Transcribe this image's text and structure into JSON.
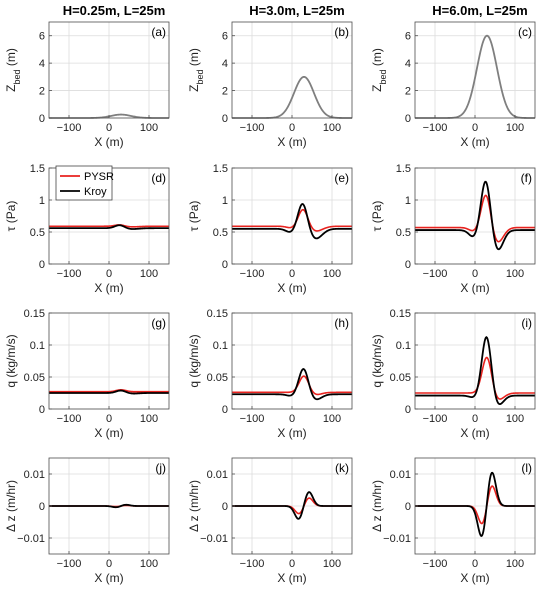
{
  "column_titles": [
    "H=0.25m, L=25m",
    "H=3.0m, L=25m",
    "H=6.0m, L=25m"
  ],
  "legend": {
    "items": [
      {
        "label": "PYSR",
        "color": "#e8231f"
      },
      {
        "label": "Kroy",
        "color": "#000000"
      }
    ],
    "placement": "top-left of panel (d)"
  },
  "chart_data": [
    {
      "type": "line",
      "panel": "(a)",
      "xlabel": "X (m)",
      "ylabel": "Z_bed (m)",
      "xlim": [
        -150,
        150
      ],
      "ylim": [
        0,
        7
      ],
      "yticks": [
        "0",
        "2",
        "4",
        "6"
      ],
      "xticks": [
        "-100",
        "0",
        "100"
      ],
      "grid": true,
      "series": [
        {
          "color": "#7f7f7f",
          "gauss": {
            "amp": 0.25,
            "center": 30,
            "sigma": 25
          }
        }
      ]
    },
    {
      "type": "line",
      "panel": "(b)",
      "xlabel": "X (m)",
      "ylabel": "Z_bed (m)",
      "xlim": [
        -150,
        150
      ],
      "ylim": [
        0,
        7
      ],
      "yticks": [
        "0",
        "2",
        "4",
        "6"
      ],
      "xticks": [
        "-100",
        "0",
        "100"
      ],
      "grid": true,
      "series": [
        {
          "color": "#7f7f7f",
          "gauss": {
            "amp": 3.0,
            "center": 30,
            "sigma": 25
          }
        }
      ]
    },
    {
      "type": "line",
      "panel": "(c)",
      "xlabel": "X (m)",
      "ylabel": "Z_bed (m)",
      "xlim": [
        -150,
        150
      ],
      "ylim": [
        0,
        7
      ],
      "yticks": [
        "0",
        "2",
        "4",
        "6"
      ],
      "xticks": [
        "-100",
        "0",
        "100"
      ],
      "grid": true,
      "series": [
        {
          "color": "#7f7f7f",
          "gauss": {
            "amp": 6.0,
            "center": 30,
            "sigma": 25
          }
        }
      ]
    },
    {
      "type": "line",
      "panel": "(d)",
      "xlabel": "X (m)",
      "ylabel": "τ (Pa)",
      "xlim": [
        -150,
        150
      ],
      "ylim": [
        0,
        1.5
      ],
      "yticks": [
        "0",
        "0.5",
        "1",
        "1.5"
      ],
      "xticks": [
        "-100",
        "0",
        "100"
      ],
      "grid": true,
      "series": [
        {
          "name": "PYSR",
          "color": "#e8231f",
          "base": 0.59,
          "terms": [
            {
              "amp": 0.025,
              "center": 27,
              "sigma": 12
            },
            {
              "amp": -0.01,
              "center": 55,
              "sigma": 20
            }
          ]
        },
        {
          "name": "Kroy",
          "color": "#000000",
          "base": 0.56,
          "terms": [
            {
              "amp": 0.05,
              "center": 27,
              "sigma": 12
            },
            {
              "amp": -0.015,
              "center": 55,
              "sigma": 18
            }
          ]
        }
      ]
    },
    {
      "type": "line",
      "panel": "(e)",
      "xlabel": "X (m)",
      "ylabel": "τ (Pa)",
      "xlim": [
        -150,
        150
      ],
      "ylim": [
        0,
        1.5
      ],
      "yticks": [
        "0",
        "0.5",
        "1",
        "1.5"
      ],
      "xticks": [
        "-100",
        "0",
        "100"
      ],
      "grid": true,
      "series": [
        {
          "name": "PYSR",
          "color": "#e8231f",
          "base": 0.59,
          "terms": [
            {
              "amp": 0.28,
              "center": 28,
              "sigma": 12
            },
            {
              "amp": -0.08,
              "center": 58,
              "sigma": 18
            },
            {
              "amp": -0.03,
              "center": 0,
              "sigma": 12
            }
          ]
        },
        {
          "name": "Kroy",
          "color": "#000000",
          "base": 0.55,
          "terms": [
            {
              "amp": 0.42,
              "center": 27,
              "sigma": 12
            },
            {
              "amp": -0.16,
              "center": 58,
              "sigma": 17
            },
            {
              "amp": -0.06,
              "center": -2,
              "sigma": 12
            }
          ]
        }
      ]
    },
    {
      "type": "line",
      "panel": "(f)",
      "xlabel": "X (m)",
      "ylabel": "τ (Pa)",
      "xlim": [
        -150,
        150
      ],
      "ylim": [
        0,
        1.5
      ],
      "yticks": [
        "0",
        "0.5",
        "1",
        "1.5"
      ],
      "xticks": [
        "-100",
        "0",
        "100"
      ],
      "grid": true,
      "series": [
        {
          "name": "PYSR",
          "color": "#e8231f",
          "base": 0.57,
          "terms": [
            {
              "amp": 0.55,
              "center": 28,
              "sigma": 12
            },
            {
              "amp": -0.25,
              "center": 55,
              "sigma": 15
            },
            {
              "amp": -0.06,
              "center": -2,
              "sigma": 12
            }
          ]
        },
        {
          "name": "Kroy",
          "color": "#000000",
          "base": 0.53,
          "terms": [
            {
              "amp": 0.8,
              "center": 27,
              "sigma": 12
            },
            {
              "amp": -0.33,
              "center": 56,
              "sigma": 14
            },
            {
              "amp": -0.12,
              "center": -2,
              "sigma": 12
            }
          ]
        }
      ]
    },
    {
      "type": "line",
      "panel": "(g)",
      "xlabel": "X (m)",
      "ylabel": "q (kg/m/s)",
      "xlim": [
        -150,
        150
      ],
      "ylim": [
        0,
        0.15
      ],
      "yticks": [
        "0",
        "0.05",
        "0.1",
        "0.15"
      ],
      "xticks": [
        "-100",
        "0",
        "100"
      ],
      "grid": true,
      "series": [
        {
          "name": "PYSR",
          "color": "#e8231f",
          "base": 0.027,
          "terms": [
            {
              "amp": 0.003,
              "center": 30,
              "sigma": 12
            }
          ]
        },
        {
          "name": "Kroy",
          "color": "#000000",
          "base": 0.025,
          "terms": [
            {
              "amp": 0.004,
              "center": 30,
              "sigma": 12
            },
            {
              "amp": -0.001,
              "center": 58,
              "sigma": 15
            }
          ]
        }
      ]
    },
    {
      "type": "line",
      "panel": "(h)",
      "xlabel": "X (m)",
      "ylabel": "q (kg/m/s)",
      "xlim": [
        -150,
        150
      ],
      "ylim": [
        0,
        0.15
      ],
      "yticks": [
        "0",
        "0.05",
        "0.1",
        "0.15"
      ],
      "xticks": [
        "-100",
        "0",
        "100"
      ],
      "grid": true,
      "series": [
        {
          "name": "PYSR",
          "color": "#e8231f",
          "base": 0.026,
          "terms": [
            {
              "amp": 0.026,
              "center": 30,
              "sigma": 12
            },
            {
              "amp": -0.004,
              "center": 58,
              "sigma": 15
            }
          ]
        },
        {
          "name": "Kroy",
          "color": "#000000",
          "base": 0.023,
          "terms": [
            {
              "amp": 0.041,
              "center": 29,
              "sigma": 12
            },
            {
              "amp": -0.009,
              "center": 58,
              "sigma": 15
            },
            {
              "amp": -0.003,
              "center": 0,
              "sigma": 12
            }
          ]
        }
      ]
    },
    {
      "type": "line",
      "panel": "(i)",
      "xlabel": "X (m)",
      "ylabel": "q (kg/m/s)",
      "xlim": [
        -150,
        150
      ],
      "ylim": [
        0,
        0.15
      ],
      "yticks": [
        "0",
        "0.05",
        "0.1",
        "0.15"
      ],
      "xticks": [
        "-100",
        "0",
        "100"
      ],
      "grid": true,
      "series": [
        {
          "name": "PYSR",
          "color": "#e8231f",
          "base": 0.025,
          "terms": [
            {
              "amp": 0.058,
              "center": 30,
              "sigma": 12
            },
            {
              "amp": -0.012,
              "center": 56,
              "sigma": 15
            }
          ]
        },
        {
          "name": "Kroy",
          "color": "#000000",
          "base": 0.021,
          "terms": [
            {
              "amp": 0.094,
              "center": 29,
              "sigma": 12
            },
            {
              "amp": -0.017,
              "center": 56,
              "sigma": 14
            },
            {
              "amp": -0.004,
              "center": 0,
              "sigma": 12
            }
          ]
        }
      ]
    },
    {
      "type": "line",
      "panel": "(j)",
      "xlabel": "X (m)",
      "ylabel": "Δ z (m/hr)",
      "xlim": [
        -150,
        150
      ],
      "ylim": [
        -0.015,
        0.015
      ],
      "yticks": [
        "-0.01",
        "0",
        "0.01"
      ],
      "xticks": [
        "-100",
        "0",
        "100"
      ],
      "grid": true,
      "series": [
        {
          "name": "PYSR",
          "color": "#e8231f",
          "base": 0,
          "terms": [
            {
              "amp": -0.0002,
              "center": 18,
              "sigma": 10
            },
            {
              "amp": 0.0002,
              "center": 42,
              "sigma": 10
            }
          ]
        },
        {
          "name": "Kroy",
          "color": "#000000",
          "base": 0,
          "terms": [
            {
              "amp": -0.0004,
              "center": 18,
              "sigma": 10
            },
            {
              "amp": 0.0004,
              "center": 42,
              "sigma": 10
            }
          ]
        }
      ]
    },
    {
      "type": "line",
      "panel": "(k)",
      "xlabel": "X (m)",
      "ylabel": "Δ z (m/hr)",
      "xlim": [
        -150,
        150
      ],
      "ylim": [
        -0.015,
        0.015
      ],
      "yticks": [
        "-0.01",
        "0",
        "0.01"
      ],
      "xticks": [
        "-100",
        "0",
        "100"
      ],
      "grid": true,
      "series": [
        {
          "name": "PYSR",
          "color": "#e8231f",
          "base": 0,
          "terms": [
            {
              "amp": -0.0025,
              "center": 18,
              "sigma": 10
            },
            {
              "amp": 0.0026,
              "center": 42,
              "sigma": 10
            }
          ]
        },
        {
          "name": "Kroy",
          "color": "#000000",
          "base": 0,
          "terms": [
            {
              "amp": -0.0042,
              "center": 17,
              "sigma": 10
            },
            {
              "amp": 0.0045,
              "center": 42,
              "sigma": 10
            }
          ]
        }
      ]
    },
    {
      "type": "line",
      "panel": "(l)",
      "xlabel": "X (m)",
      "ylabel": "Δ z (m/hr)",
      "xlim": [
        -150,
        150
      ],
      "ylim": [
        -0.015,
        0.015
      ],
      "yticks": [
        "-0.01",
        "0",
        "0.01"
      ],
      "xticks": [
        "-100",
        "0",
        "100"
      ],
      "grid": true,
      "series": [
        {
          "name": "PYSR",
          "color": "#e8231f",
          "base": 0,
          "terms": [
            {
              "amp": -0.0058,
              "center": 18,
              "sigma": 10
            },
            {
              "amp": 0.0065,
              "center": 42,
              "sigma": 10
            }
          ]
        },
        {
          "name": "Kroy",
          "color": "#000000",
          "base": 0,
          "terms": [
            {
              "amp": -0.0098,
              "center": 17,
              "sigma": 10
            },
            {
              "amp": 0.0108,
              "center": 42,
              "sigma": 10
            }
          ]
        }
      ]
    }
  ]
}
